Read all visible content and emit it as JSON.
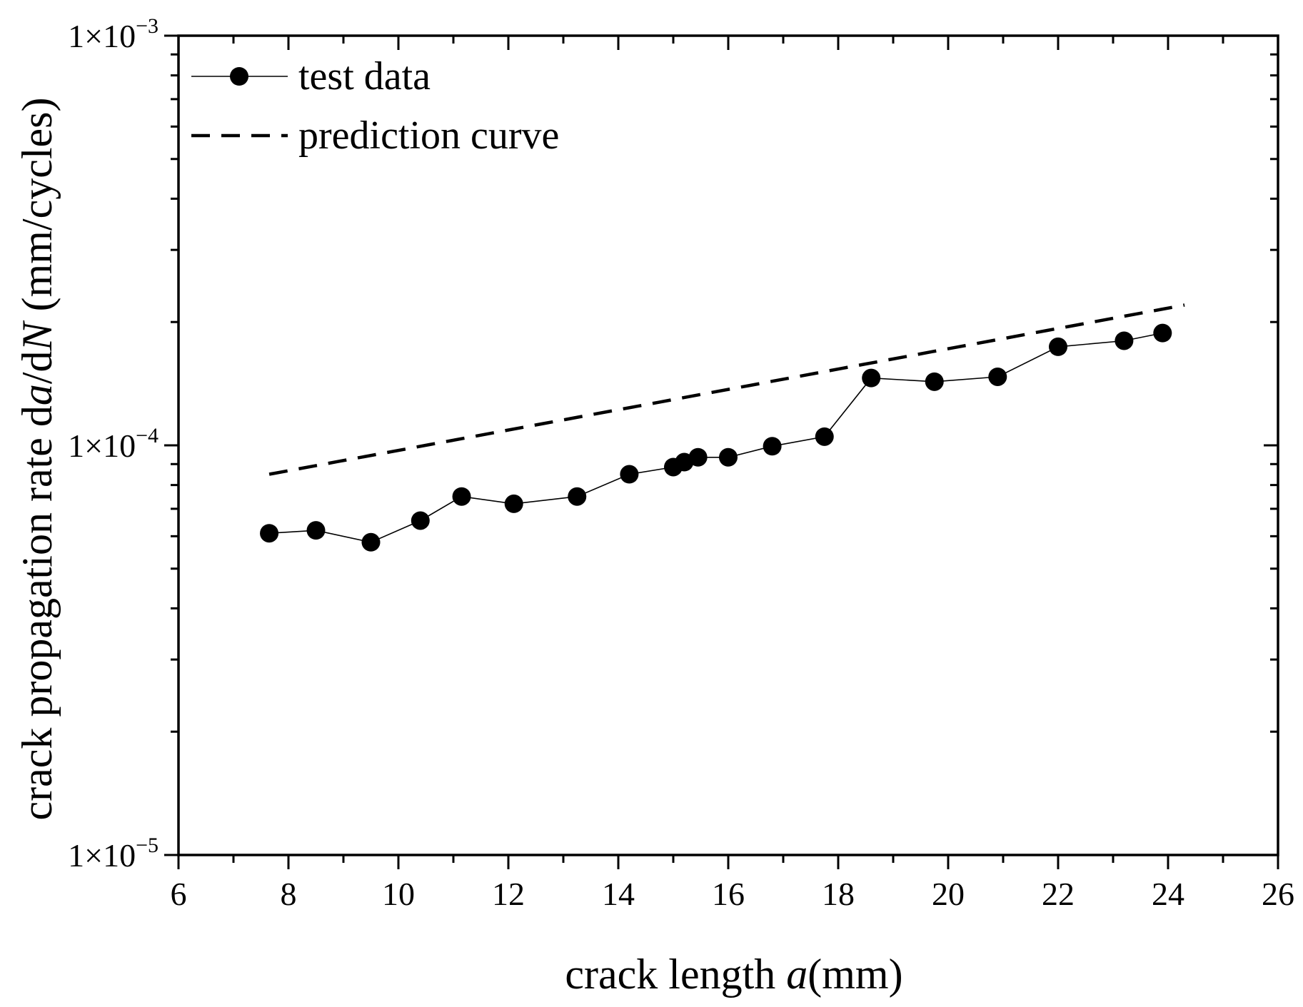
{
  "chart_data": {
    "type": "line",
    "title": "",
    "xlabel": {
      "prefix": "crack length ",
      "italic": "a",
      "suffix": "(mm)"
    },
    "ylabel": {
      "prefix": "crack propagation rate d",
      "italic1": "a",
      "middle": "/d",
      "italic2": "N",
      "suffix": " (mm/cycles)"
    },
    "x_range": [
      6,
      26
    ],
    "x_ticks": [
      6,
      8,
      10,
      12,
      14,
      16,
      18,
      20,
      22,
      24,
      26
    ],
    "y_scale": "log",
    "y_range": [
      1e-05,
      0.001
    ],
    "y_tick_labels": [
      {
        "value": 1e-05,
        "base": "1×10",
        "exp": "−5"
      },
      {
        "value": 0.0001,
        "base": "1×10",
        "exp": "−4"
      },
      {
        "value": 0.001,
        "base": "1×10",
        "exp": "−3"
      }
    ],
    "legend_position": "top-left",
    "series": [
      {
        "name": "test data",
        "style": "solid-line-with-circle-markers",
        "color": "#000000",
        "x": [
          7.65,
          8.5,
          9.5,
          10.4,
          11.15,
          12.1,
          13.25,
          14.2,
          15.0,
          15.2,
          15.45,
          16.0,
          16.8,
          17.75,
          18.6,
          19.75,
          20.9,
          22.0,
          23.2,
          23.9
        ],
        "y": [
          6.1e-05,
          6.2e-05,
          5.8e-05,
          6.55e-05,
          7.5e-05,
          7.2e-05,
          7.5e-05,
          8.5e-05,
          8.85e-05,
          9.1e-05,
          9.35e-05,
          9.35e-05,
          9.95e-05,
          0.000105,
          0.000146,
          0.000143,
          0.000147,
          0.000174,
          0.00018,
          0.000188
        ]
      },
      {
        "name": "prediction curve",
        "style": "dashed-line",
        "color": "#000000",
        "x": [
          7.65,
          24.3
        ],
        "y": [
          8.5e-05,
          0.00022
        ]
      }
    ]
  }
}
